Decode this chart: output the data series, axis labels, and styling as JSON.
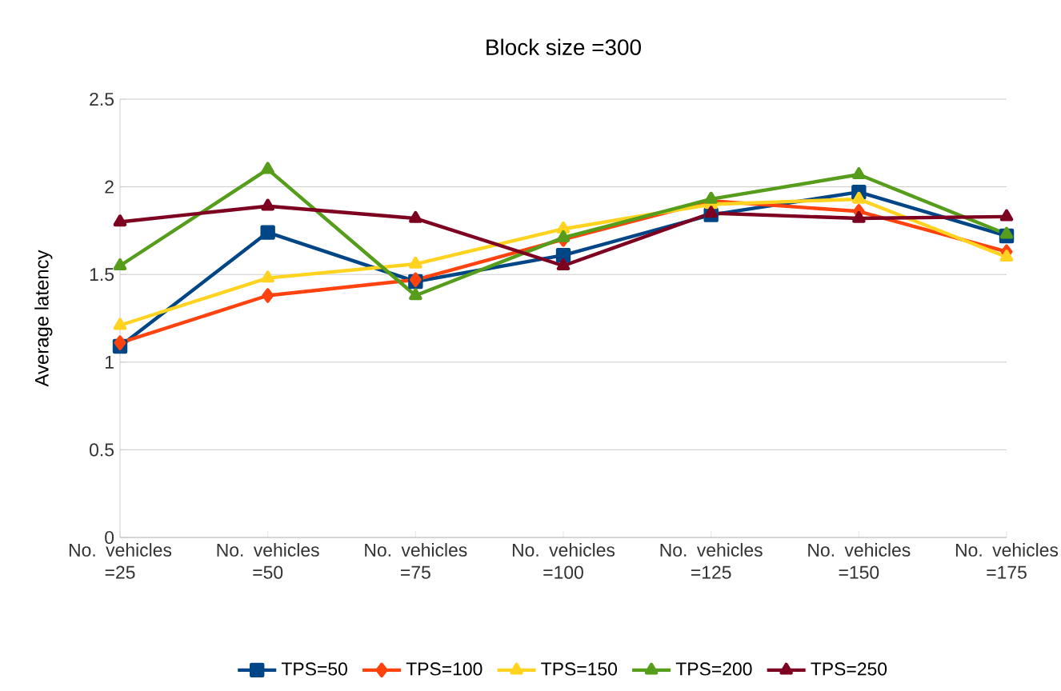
{
  "chart_data": {
    "type": "line",
    "title": "Block size =300",
    "ylabel": "Average latency",
    "categories": [
      "No. vehicles =25",
      "No. vehicles =50",
      "No. vehicles =75",
      "No. vehicles =100",
      "No. vehicles =125",
      "No. vehicles =150",
      "No. vehicles =175"
    ],
    "series": [
      {
        "name": "TPS=50",
        "color": "#004586",
        "marker": "square",
        "values": [
          1.09,
          1.74,
          1.46,
          1.61,
          1.84,
          1.97,
          1.72
        ]
      },
      {
        "name": "TPS=100",
        "color": "#ff420e",
        "marker": "diamond",
        "values": [
          1.11,
          1.38,
          1.47,
          1.7,
          1.92,
          1.86,
          1.63
        ]
      },
      {
        "name": "TPS=150",
        "color": "#ffd320",
        "marker": "triangle",
        "values": [
          1.21,
          1.48,
          1.56,
          1.76,
          1.9,
          1.93,
          1.6
        ]
      },
      {
        "name": "TPS=200",
        "color": "#579d1c",
        "marker": "triangle",
        "values": [
          1.55,
          2.1,
          1.38,
          1.71,
          1.93,
          2.07,
          1.73
        ]
      },
      {
        "name": "TPS=250",
        "color": "#7e0021",
        "marker": "triangle",
        "values": [
          1.8,
          1.89,
          1.82,
          1.55,
          1.85,
          1.82,
          1.83
        ]
      }
    ],
    "ylim": [
      0,
      2.5
    ],
    "yticks": [
      0,
      0.5,
      1,
      1.5,
      2,
      2.5
    ],
    "grid": "y",
    "legend": "bottom",
    "line_style": "solid"
  }
}
